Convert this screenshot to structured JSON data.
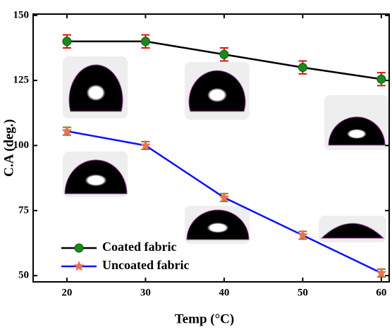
{
  "chart_data": {
    "type": "line",
    "x_label": "Temp (°C)",
    "y_label": "C.A (deg.)",
    "x": [
      20,
      30,
      40,
      50,
      60
    ],
    "series": [
      {
        "name": "Coated fabric",
        "color": "#000000",
        "marker_color": "#1a8a1a",
        "error_color": "#e01010",
        "marker": "circle",
        "values": [
          140,
          140,
          135,
          130,
          125.5
        ],
        "errors": [
          2.5,
          2.5,
          2.5,
          2.5,
          2.5
        ]
      },
      {
        "name": "Uncoated fabric",
        "color": "#1010ff",
        "marker_color": "#f07050",
        "error_color": "#808020",
        "marker": "star",
        "values": [
          105.5,
          100,
          80,
          65.5,
          51
        ],
        "errors": [
          1.5,
          1.5,
          1.5,
          1.5,
          1.5
        ]
      }
    ],
    "xlim": [
      15.7,
      61
    ],
    "ylim": [
      47.6,
      150.5
    ],
    "xticks": [
      20,
      30,
      40,
      50,
      60
    ],
    "yticks": [
      50,
      75,
      100,
      125,
      150
    ],
    "legend": "lower left"
  }
}
